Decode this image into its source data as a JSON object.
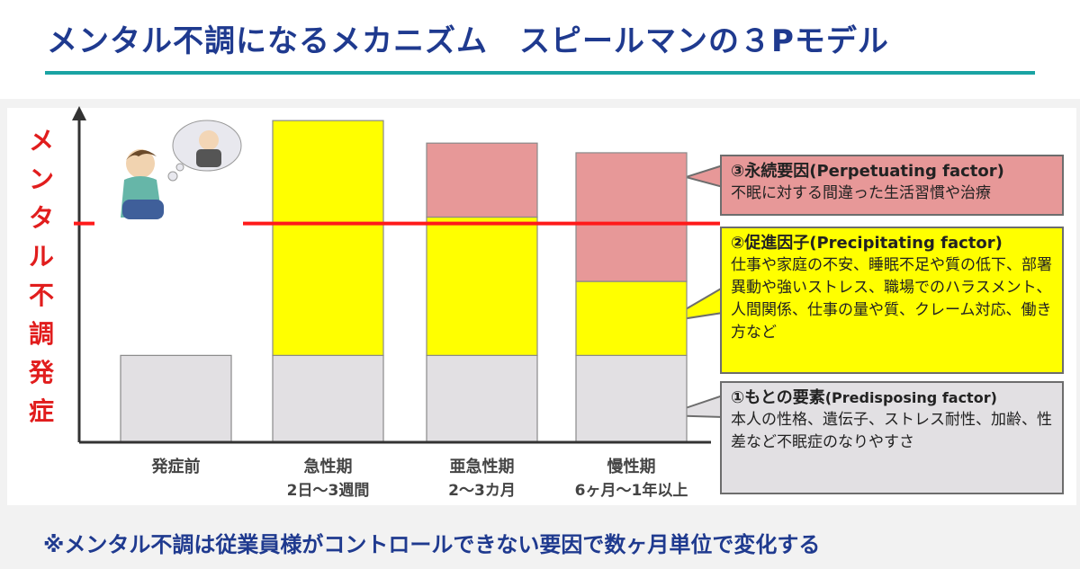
{
  "title": "メンタル不調になるメカニズム　スピールマンの３Pモデル",
  "footer": "※メンタル不調は従業員様がコントロールできない要因で数ヶ月単位で変化する",
  "chart_data": {
    "type": "bar",
    "stacked": true,
    "ylabel": "メンタル不調発症",
    "categories": [
      {
        "line1": "発症前",
        "line2": ""
      },
      {
        "line1": "急性期",
        "line2": "2日〜3週間"
      },
      {
        "line1": "亜急性期",
        "line2": "2〜3カ月"
      },
      {
        "line1": "慢性期",
        "line2": "6ヶ月〜1年以上"
      }
    ],
    "series": [
      {
        "key": "predisposing",
        "values": [
          27,
          27,
          27,
          27
        ],
        "color": "#e2e0e3"
      },
      {
        "key": "precipitating",
        "values": [
          0,
          73,
          43,
          23
        ],
        "color": "#ffff00"
      },
      {
        "key": "perpetuating",
        "values": [
          0,
          0,
          23,
          40
        ],
        "color": "#e79898"
      }
    ],
    "threshold": 68,
    "threshold_color": "#ff1a1a",
    "ylim": [
      0,
      102
    ],
    "grid": false
  },
  "callouts": {
    "perpetuating": {
      "title": "③永続要因(Perpetuating factor)",
      "text": "不眠に対する間違った生活習慣や治療"
    },
    "precipitating": {
      "title": "②促進因子(Precipitating factor)",
      "text": "仕事や家庭の不安、睡眠不足や質の低下、部署異動や強いストレス、職場でのハラスメント、人間関係、仕事の量や質、クレーム対応、働き方など"
    },
    "predisposing": {
      "title": "①もとの要素",
      "title_en": "(Predisposing factor)",
      "text": "本人の性格、遺伝子、ストレス耐性、加齢、性差など不眠症のなりやすさ"
    }
  }
}
